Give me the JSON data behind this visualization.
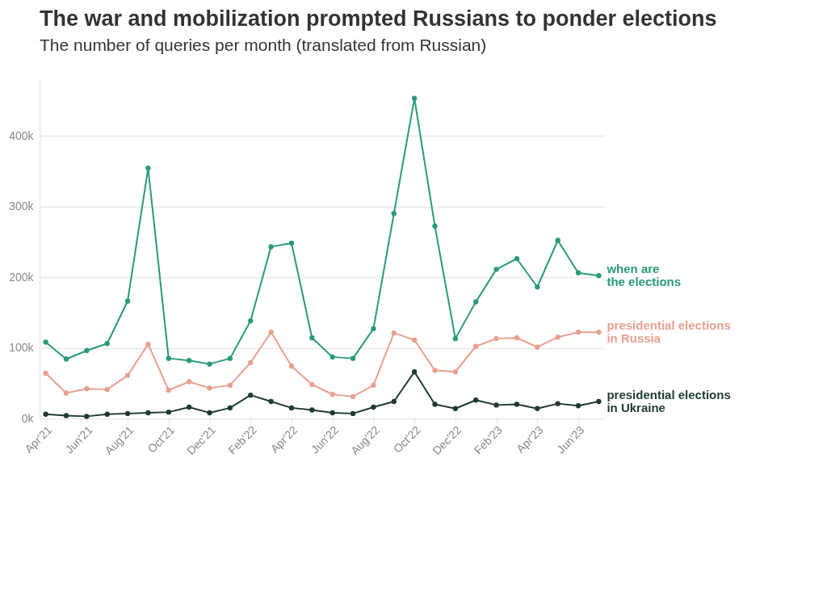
{
  "chart_data": {
    "type": "line",
    "title": "The war and mobilization prompted Russians to ponder elections",
    "subtitle": "The number of queries per month (translated from Russian)",
    "categories": [
      "Apr'21",
      null,
      "Jun'21",
      null,
      "Aug'21",
      null,
      "Oct'21",
      null,
      "Dec'21",
      null,
      "Feb'22",
      null,
      "Apr'22",
      null,
      "Jun'22",
      null,
      "Aug'22",
      null,
      "Oct'22",
      null,
      "Dec'22",
      null,
      "Feb'23",
      null,
      "Apr'23",
      null,
      "Jun'23",
      null
    ],
    "series": [
      {
        "name": "when are the elections",
        "color": "#2a9a7a",
        "values": [
          108000,
          84000,
          96000,
          106000,
          166000,
          354000,
          85000,
          82000,
          77000,
          85000,
          138000,
          243000,
          248000,
          114000,
          87000,
          85000,
          127000,
          290000,
          453000,
          272000,
          113000,
          165000,
          211000,
          226000,
          186000,
          252000,
          206000,
          202000
        ]
      },
      {
        "name": "presidential elections in Russia",
        "color": "#e8a090",
        "values": [
          64000,
          36000,
          42000,
          41000,
          61000,
          105000,
          40000,
          52000,
          43000,
          47000,
          79000,
          122000,
          74000,
          48000,
          34000,
          31000,
          47000,
          121000,
          111000,
          68000,
          66000,
          102000,
          113000,
          114000,
          101000,
          115000,
          122000,
          122000
        ]
      },
      {
        "name": "presidential elections in Ukraine",
        "color": "#1e3a34",
        "values": [
          6000,
          4000,
          3000,
          6000,
          7000,
          8000,
          9000,
          16000,
          8000,
          15000,
          33000,
          24000,
          15000,
          12000,
          8000,
          7000,
          16000,
          24000,
          66000,
          20000,
          14000,
          26000,
          19000,
          20000,
          14000,
          21000,
          18000,
          24000
        ]
      }
    ],
    "ylim": [
      0,
      480000
    ],
    "yticks": [
      {
        "value": 0,
        "label": "0k"
      },
      {
        "value": 100000,
        "label": "100k"
      },
      {
        "value": 200000,
        "label": "200k"
      },
      {
        "value": 300000,
        "label": "300k"
      },
      {
        "value": 400000,
        "label": "400k"
      }
    ],
    "grid": "y",
    "legend": false,
    "marker": "circle",
    "line_style": "solid"
  }
}
